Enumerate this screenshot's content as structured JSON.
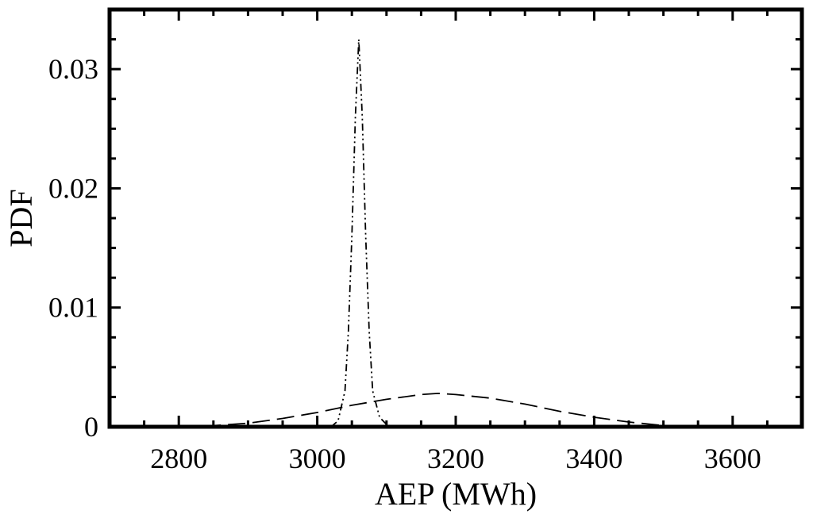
{
  "chart_data": {
    "type": "line",
    "title": "",
    "xlabel": "AEP (MWh)",
    "ylabel": "PDF",
    "xlim": [
      2700,
      3700
    ],
    "ylim": [
      0,
      0.035
    ],
    "x_ticks": [
      2800,
      3000,
      3200,
      3400,
      3600
    ],
    "x_tick_labels": [
      "2800",
      "3000",
      "3200",
      "3400",
      "3600"
    ],
    "y_ticks": [
      0,
      0.01,
      0.02,
      0.03
    ],
    "y_tick_labels": [
      "0",
      "0.01",
      "0.02",
      "0.03"
    ],
    "grid": false,
    "legend": "none",
    "series": [
      {
        "style": "dash-dot-dot",
        "color": "#000000",
        "x": [
          3020,
          3030,
          3040,
          3045,
          3050,
          3055,
          3060,
          3065,
          3070,
          3075,
          3080,
          3090,
          3100,
          3110
        ],
        "y": [
          0.0,
          0.0005,
          0.003,
          0.008,
          0.016,
          0.026,
          0.0325,
          0.026,
          0.016,
          0.008,
          0.003,
          0.0008,
          0.0002,
          0.0
        ]
      },
      {
        "style": "long-dash",
        "color": "#000000",
        "x": [
          2800,
          2850,
          2900,
          2950,
          3000,
          3050,
          3100,
          3150,
          3175,
          3200,
          3250,
          3300,
          3350,
          3400,
          3450,
          3500,
          3550
        ],
        "y": [
          0.0,
          0.0001,
          0.0003,
          0.0007,
          0.0012,
          0.0018,
          0.0023,
          0.0027,
          0.0028,
          0.0027,
          0.0024,
          0.0019,
          0.0013,
          0.0008,
          0.0004,
          0.0001,
          0.0
        ]
      }
    ]
  }
}
